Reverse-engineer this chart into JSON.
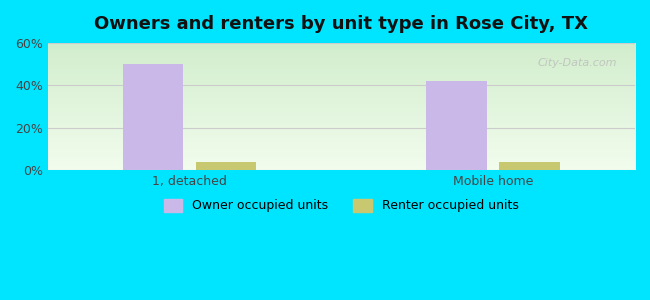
{
  "title": "Owners and renters by unit type in Rose City, TX",
  "categories": [
    "1, detached",
    "Mobile home"
  ],
  "owner_values": [
    50,
    42
  ],
  "renter_values": [
    4,
    4
  ],
  "owner_color": "#c9b8e8",
  "renter_color": "#c8c870",
  "ylim": [
    0,
    60
  ],
  "yticks": [
    0,
    20,
    40,
    60
  ],
  "ytick_labels": [
    "0%",
    "20%",
    "40%",
    "60%"
  ],
  "background_outer": "#00e5ff",
  "grid_color": "#cccccc",
  "bar_width": 0.3,
  "group_positions": [
    1.0,
    2.5
  ],
  "watermark": "City-Data.com",
  "legend_owner": "Owner occupied units",
  "legend_renter": "Renter occupied units"
}
